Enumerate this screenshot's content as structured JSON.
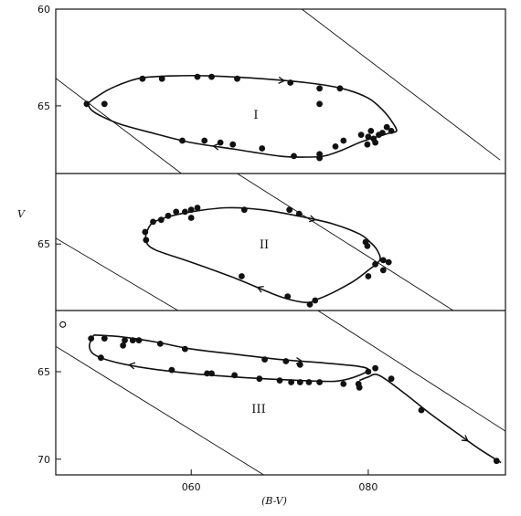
{
  "chart_data": {
    "type": "scatter",
    "title": "",
    "xlabel": "(B-V)",
    "ylabel": "V",
    "x_range": [
      0.447,
      0.955
    ],
    "y_inverted": true,
    "x_ticks": [
      {
        "v": 0.6,
        "label": "060"
      },
      {
        "v": 0.8,
        "label": "080"
      }
    ],
    "panels": [
      {
        "label": "I",
        "y_range": [
          6.0,
          6.85
        ],
        "y_ticks": [
          {
            "v": 6.0,
            "label": "60"
          },
          {
            "v": 6.5,
            "label": "65"
          }
        ],
        "points": [
          [
            0.482,
            6.49
          ],
          [
            0.502,
            6.49
          ],
          [
            0.545,
            6.36
          ],
          [
            0.567,
            6.36
          ],
          [
            0.607,
            6.35
          ],
          [
            0.623,
            6.35
          ],
          [
            0.652,
            6.36
          ],
          [
            0.712,
            6.38
          ],
          [
            0.745,
            6.41
          ],
          [
            0.745,
            6.49
          ],
          [
            0.768,
            6.41
          ],
          [
            0.59,
            6.68
          ],
          [
            0.615,
            6.68
          ],
          [
            0.633,
            6.69
          ],
          [
            0.647,
            6.7
          ],
          [
            0.68,
            6.72
          ],
          [
            0.716,
            6.76
          ],
          [
            0.745,
            6.75
          ],
          [
            0.745,
            6.77
          ],
          [
            0.763,
            6.71
          ],
          [
            0.772,
            6.68
          ],
          [
            0.792,
            6.65
          ],
          [
            0.8,
            6.66
          ],
          [
            0.806,
            6.67
          ],
          [
            0.808,
            6.69
          ],
          [
            0.816,
            6.64
          ],
          [
            0.821,
            6.61
          ],
          [
            0.826,
            6.63
          ],
          [
            0.803,
            6.63
          ],
          [
            0.812,
            6.65
          ],
          [
            0.799,
            6.7
          ]
        ],
        "curve": [
          [
            0.483,
            6.49
          ],
          [
            0.488,
            6.47
          ],
          [
            0.505,
            6.42
          ],
          [
            0.525,
            6.38
          ],
          [
            0.545,
            6.355
          ],
          [
            0.58,
            6.345
          ],
          [
            0.62,
            6.345
          ],
          [
            0.68,
            6.36
          ],
          [
            0.73,
            6.38
          ],
          [
            0.77,
            6.41
          ],
          [
            0.8,
            6.46
          ],
          [
            0.818,
            6.53
          ],
          [
            0.828,
            6.59
          ],
          [
            0.832,
            6.63
          ],
          [
            0.825,
            6.64
          ],
          [
            0.81,
            6.66
          ],
          [
            0.79,
            6.69
          ],
          [
            0.77,
            6.73
          ],
          [
            0.75,
            6.76
          ],
          [
            0.73,
            6.765
          ],
          [
            0.7,
            6.76
          ],
          [
            0.65,
            6.725
          ],
          [
            0.6,
            6.69
          ],
          [
            0.56,
            6.645
          ],
          [
            0.52,
            6.595
          ],
          [
            0.497,
            6.55
          ],
          [
            0.487,
            6.52
          ],
          [
            0.483,
            6.49
          ]
        ],
        "diagonals": [
          [
            0.439,
            6.33,
            0.589,
            6.85
          ],
          [
            0.725,
            6.0,
            0.949,
            6.78
          ]
        ]
      },
      {
        "label": "II",
        "y_range": [
          6.15,
          6.83
        ],
        "y_ticks": [
          {
            "v": 6.5,
            "label": "65"
          }
        ],
        "points": [
          [
            0.548,
            6.44
          ],
          [
            0.549,
            6.48
          ],
          [
            0.557,
            6.39
          ],
          [
            0.566,
            6.38
          ],
          [
            0.574,
            6.36
          ],
          [
            0.583,
            6.34
          ],
          [
            0.593,
            6.34
          ],
          [
            0.6,
            6.33
          ],
          [
            0.6,
            6.37
          ],
          [
            0.607,
            6.32
          ],
          [
            0.66,
            6.33
          ],
          [
            0.711,
            6.33
          ],
          [
            0.722,
            6.35
          ],
          [
            0.797,
            6.49
          ],
          [
            0.799,
            6.51
          ],
          [
            0.8,
            6.66
          ],
          [
            0.808,
            6.6
          ],
          [
            0.817,
            6.58
          ],
          [
            0.823,
            6.59
          ],
          [
            0.817,
            6.63
          ],
          [
            0.74,
            6.78
          ],
          [
            0.734,
            6.8
          ],
          [
            0.709,
            6.76
          ],
          [
            0.657,
            6.66
          ]
        ],
        "curve": [
          [
            0.549,
            6.45
          ],
          [
            0.555,
            6.4
          ],
          [
            0.57,
            6.37
          ],
          [
            0.6,
            6.34
          ],
          [
            0.64,
            6.32
          ],
          [
            0.68,
            6.33
          ],
          [
            0.72,
            6.36
          ],
          [
            0.76,
            6.4
          ],
          [
            0.79,
            6.45
          ],
          [
            0.802,
            6.49
          ],
          [
            0.81,
            6.53
          ],
          [
            0.813,
            6.58
          ],
          [
            0.8,
            6.63
          ],
          [
            0.785,
            6.68
          ],
          [
            0.765,
            6.73
          ],
          [
            0.745,
            6.77
          ],
          [
            0.73,
            6.79
          ],
          [
            0.7,
            6.76
          ],
          [
            0.65,
            6.67
          ],
          [
            0.6,
            6.59
          ],
          [
            0.56,
            6.53
          ],
          [
            0.549,
            6.49
          ],
          [
            0.549,
            6.45
          ]
        ],
        "diagonals": [
          [
            0.439,
            6.45,
            0.585,
            6.83
          ],
          [
            0.652,
            6.15,
            0.896,
            6.83
          ]
        ]
      },
      {
        "label": "III",
        "y_range": [
          6.15,
          7.09
        ],
        "y_ticks": [
          {
            "v": 6.5,
            "label": "65"
          },
          {
            "v": 7.0,
            "label": "70"
          }
        ],
        "points": [
          [
            0.487,
            6.31
          ],
          [
            0.502,
            6.31
          ],
          [
            0.525,
            6.32
          ],
          [
            0.523,
            6.35
          ],
          [
            0.534,
            6.32
          ],
          [
            0.541,
            6.32
          ],
          [
            0.565,
            6.34
          ],
          [
            0.593,
            6.37
          ],
          [
            0.498,
            6.42
          ],
          [
            0.578,
            6.49
          ],
          [
            0.618,
            6.51
          ],
          [
            0.623,
            6.51
          ],
          [
            0.649,
            6.52
          ],
          [
            0.677,
            6.54
          ],
          [
            0.7,
            6.55
          ],
          [
            0.713,
            6.56
          ],
          [
            0.723,
            6.56
          ],
          [
            0.733,
            6.56
          ],
          [
            0.745,
            6.56
          ],
          [
            0.772,
            6.57
          ],
          [
            0.789,
            6.57
          ],
          [
            0.79,
            6.59
          ],
          [
            0.8,
            6.5
          ],
          [
            0.808,
            6.48
          ],
          [
            0.826,
            6.54
          ],
          [
            0.683,
            6.43
          ],
          [
            0.707,
            6.44
          ],
          [
            0.723,
            6.46
          ],
          [
            0.86,
            6.72
          ],
          [
            0.945,
            7.01
          ]
        ],
        "curve": [
          [
            0.49,
            6.29
          ],
          [
            0.52,
            6.3
          ],
          [
            0.56,
            6.33
          ],
          [
            0.6,
            6.37
          ],
          [
            0.65,
            6.4
          ],
          [
            0.7,
            6.43
          ],
          [
            0.75,
            6.45
          ],
          [
            0.79,
            6.47
          ],
          [
            0.8,
            6.49
          ],
          [
            0.79,
            6.52
          ],
          [
            0.77,
            6.55
          ],
          [
            0.75,
            6.555
          ],
          [
            0.7,
            6.545
          ],
          [
            0.65,
            6.53
          ],
          [
            0.6,
            6.51
          ],
          [
            0.55,
            6.48
          ],
          [
            0.51,
            6.44
          ],
          [
            0.49,
            6.4
          ],
          [
            0.485,
            6.35
          ],
          [
            0.49,
            6.29
          ]
        ],
        "tail": [
          [
            0.79,
            6.55
          ],
          [
            0.8,
            6.53
          ],
          [
            0.812,
            6.52
          ],
          [
            0.84,
            6.62
          ],
          [
            0.87,
            6.74
          ],
          [
            0.9,
            6.85
          ],
          [
            0.925,
            6.94
          ],
          [
            0.95,
            7.02
          ]
        ],
        "open_point": [
          0.455,
          6.23
        ],
        "diagonals": [
          [
            0.439,
            6.33,
            0.682,
            7.09
          ],
          [
            0.743,
            6.15,
            0.955,
            6.84
          ]
        ]
      }
    ]
  }
}
